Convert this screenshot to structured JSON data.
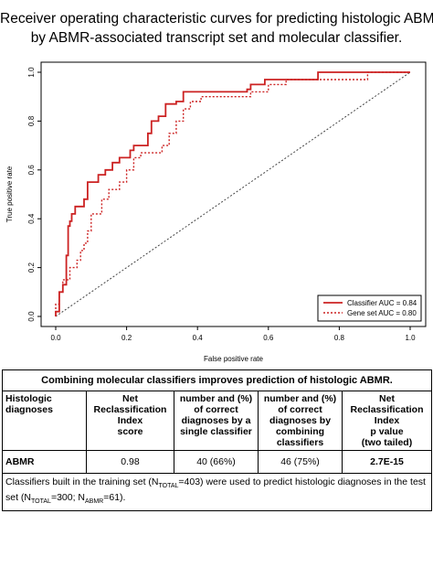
{
  "title_lines": [
    "Receiver operating characteristic curves for predicting histologic ABMR",
    "by ABMR-associated transcript set and molecular classifier."
  ],
  "chart_data": {
    "type": "line",
    "title": "",
    "xlabel": "False positive rate",
    "ylabel": "True positive rate",
    "xlim": [
      0,
      1
    ],
    "ylim": [
      0,
      1
    ],
    "xticks": [
      "0.0",
      "0.2",
      "0.4",
      "0.6",
      "0.8",
      "1.0"
    ],
    "yticks": [
      "0.0",
      "0.2",
      "0.4",
      "0.6",
      "0.8",
      "1.0"
    ],
    "grid": false,
    "legend_position": "bottom-right",
    "diagonal_reference": true,
    "series": [
      {
        "name": "Classifier AUC = 0.84",
        "color": "#cc2222",
        "style": "solid",
        "points": [
          [
            0,
            0
          ],
          [
            0,
            0.02
          ],
          [
            0.01,
            0.02
          ],
          [
            0.01,
            0.1
          ],
          [
            0.02,
            0.1
          ],
          [
            0.02,
            0.13
          ],
          [
            0.03,
            0.13
          ],
          [
            0.03,
            0.25
          ],
          [
            0.035,
            0.25
          ],
          [
            0.035,
            0.37
          ],
          [
            0.04,
            0.37
          ],
          [
            0.04,
            0.39
          ],
          [
            0.045,
            0.39
          ],
          [
            0.045,
            0.42
          ],
          [
            0.055,
            0.42
          ],
          [
            0.055,
            0.45
          ],
          [
            0.08,
            0.45
          ],
          [
            0.08,
            0.48
          ],
          [
            0.09,
            0.48
          ],
          [
            0.09,
            0.55
          ],
          [
            0.12,
            0.55
          ],
          [
            0.12,
            0.58
          ],
          [
            0.14,
            0.58
          ],
          [
            0.14,
            0.6
          ],
          [
            0.16,
            0.6
          ],
          [
            0.16,
            0.63
          ],
          [
            0.18,
            0.63
          ],
          [
            0.18,
            0.65
          ],
          [
            0.21,
            0.65
          ],
          [
            0.21,
            0.68
          ],
          [
            0.22,
            0.68
          ],
          [
            0.22,
            0.7
          ],
          [
            0.26,
            0.7
          ],
          [
            0.26,
            0.75
          ],
          [
            0.27,
            0.75
          ],
          [
            0.27,
            0.8
          ],
          [
            0.29,
            0.8
          ],
          [
            0.29,
            0.82
          ],
          [
            0.31,
            0.82
          ],
          [
            0.31,
            0.87
          ],
          [
            0.34,
            0.87
          ],
          [
            0.34,
            0.88
          ],
          [
            0.36,
            0.88
          ],
          [
            0.36,
            0.92
          ],
          [
            0.54,
            0.92
          ],
          [
            0.54,
            0.93
          ],
          [
            0.55,
            0.93
          ],
          [
            0.55,
            0.95
          ],
          [
            0.59,
            0.95
          ],
          [
            0.59,
            0.97
          ],
          [
            0.74,
            0.97
          ],
          [
            0.74,
            1.0
          ],
          [
            1.0,
            1.0
          ]
        ]
      },
      {
        "name": "Gene set AUC = 0.80",
        "color": "#cc2222",
        "style": "dotted",
        "points": [
          [
            0,
            0
          ],
          [
            0,
            0.05
          ],
          [
            0.01,
            0.05
          ],
          [
            0.01,
            0.1
          ],
          [
            0.02,
            0.1
          ],
          [
            0.02,
            0.15
          ],
          [
            0.04,
            0.15
          ],
          [
            0.04,
            0.2
          ],
          [
            0.06,
            0.2
          ],
          [
            0.06,
            0.23
          ],
          [
            0.07,
            0.23
          ],
          [
            0.07,
            0.27
          ],
          [
            0.08,
            0.27
          ],
          [
            0.08,
            0.3
          ],
          [
            0.09,
            0.3
          ],
          [
            0.09,
            0.35
          ],
          [
            0.1,
            0.35
          ],
          [
            0.1,
            0.42
          ],
          [
            0.13,
            0.42
          ],
          [
            0.13,
            0.48
          ],
          [
            0.15,
            0.48
          ],
          [
            0.15,
            0.52
          ],
          [
            0.18,
            0.52
          ],
          [
            0.18,
            0.55
          ],
          [
            0.2,
            0.55
          ],
          [
            0.2,
            0.6
          ],
          [
            0.22,
            0.6
          ],
          [
            0.22,
            0.65
          ],
          [
            0.24,
            0.65
          ],
          [
            0.24,
            0.67
          ],
          [
            0.3,
            0.67
          ],
          [
            0.3,
            0.7
          ],
          [
            0.32,
            0.7
          ],
          [
            0.32,
            0.75
          ],
          [
            0.34,
            0.75
          ],
          [
            0.34,
            0.8
          ],
          [
            0.36,
            0.8
          ],
          [
            0.36,
            0.85
          ],
          [
            0.38,
            0.85
          ],
          [
            0.38,
            0.88
          ],
          [
            0.41,
            0.88
          ],
          [
            0.41,
            0.9
          ],
          [
            0.55,
            0.9
          ],
          [
            0.55,
            0.92
          ],
          [
            0.6,
            0.92
          ],
          [
            0.6,
            0.95
          ],
          [
            0.65,
            0.95
          ],
          [
            0.65,
            0.97
          ],
          [
            0.88,
            0.97
          ],
          [
            0.88,
            1.0
          ],
          [
            1.0,
            1.0
          ]
        ]
      }
    ]
  },
  "table": {
    "caption": "Combining molecular classifiers improves prediction of histologic ABMR.",
    "headers": [
      [
        "Histologic",
        "diagnoses"
      ],
      [
        "Net",
        "Reclassification",
        "Index",
        "score"
      ],
      [
        "number and (%)",
        "of correct",
        "diagnoses by a",
        "single classifier"
      ],
      [
        "number and (%)",
        "of correct",
        "diagnoses by",
        "combining",
        "classifiers"
      ],
      [
        "Net",
        "Reclassification",
        "Index",
        "p value",
        "(two tailed)"
      ]
    ],
    "row": {
      "label": "ABMR",
      "nri_score": "0.98",
      "single": "40 (66%)",
      "combined": "46 (75%)",
      "p_value": "2.7E-15"
    },
    "footnote": {
      "t1": "Classifiers built in the training set (N",
      "s1": "TOTAL",
      "t2": "=403) were used to predict histologic diagnoses in the test set (N",
      "s2": "TOTAL",
      "t3": "=300; N",
      "s3": "ABMR",
      "t4": "=61)."
    }
  }
}
